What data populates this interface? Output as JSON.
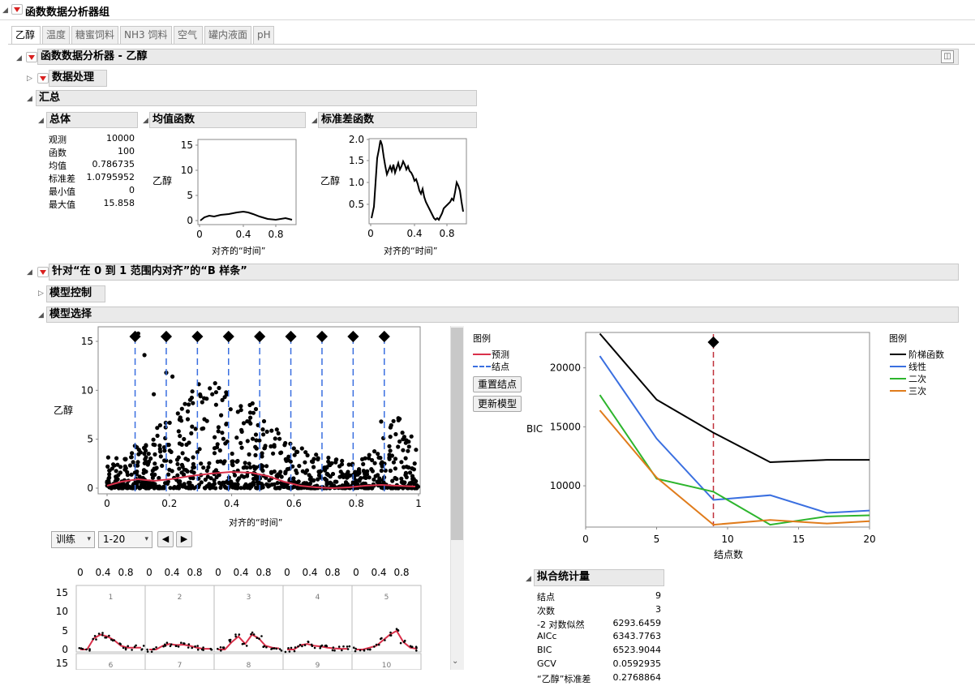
{
  "top": {
    "title": "函数数据分析器组"
  },
  "tabs": [
    "乙醇",
    "温度",
    "糖蜜饲料",
    "NH3 饲料",
    "空气",
    "罐内液面",
    "pH"
  ],
  "analyzer": {
    "title": "函数数据分析器 - 乙醇"
  },
  "data_processing": {
    "title": "数据处理"
  },
  "summary": {
    "title": "汇总",
    "overall": {
      "title": "总体",
      "rows": [
        {
          "label": "观测",
          "value": "10000"
        },
        {
          "label": "函数",
          "value": "100"
        },
        {
          "label": "均值",
          "value": "0.786735"
        },
        {
          "label": "标准差",
          "value": "1.0795952"
        },
        {
          "label": "最小值",
          "value": "0"
        },
        {
          "label": "最大值",
          "value": "15.858"
        }
      ]
    },
    "mean_fn": {
      "title": "均值函数",
      "ylabel": "乙醇",
      "xlabel": "对齐的“时间”",
      "yticks": [
        "15",
        "10",
        "5",
        "0"
      ],
      "xticks": [
        "0",
        "0.4",
        "0.8"
      ]
    },
    "sd_fn": {
      "title": "标准差函数",
      "ylabel": "乙醇",
      "xlabel": "对齐的“时间”",
      "yticks": [
        "2.0",
        "1.5",
        "1.0",
        "0.5"
      ],
      "xticks": [
        "0",
        "0.4",
        "0.8"
      ]
    }
  },
  "bspline": {
    "title": "针对“在 0 到 1 范围内对齐”的“B 样条”"
  },
  "model_control": {
    "title": "模型控制"
  },
  "model_selection": {
    "title": "模型选择"
  },
  "main_plot": {
    "ylabel": "乙醇",
    "xlabel": "对齐的“时间”",
    "yticks": [
      "15",
      "10",
      "5",
      "0"
    ],
    "xticks": [
      "0",
      "0.2",
      "0.4",
      "0.6",
      "0.8",
      "1"
    ],
    "knots": [
      0.09,
      0.19,
      0.29,
      0.39,
      0.49,
      0.59,
      0.69,
      0.79,
      0.89
    ]
  },
  "legend": {
    "title": "图例",
    "predicted": "预测",
    "knots": "结点"
  },
  "buttons": {
    "reset_knots": "重置结点",
    "update_model": "更新模型"
  },
  "controls": {
    "set": "训练",
    "range": "1-20"
  },
  "small_multiples": {
    "top_ticks": [
      "0",
      "0.4",
      "0.8"
    ],
    "yticks": [
      "15",
      "10",
      "5",
      "0"
    ],
    "row2_ytick": "15",
    "panels_row1": [
      "1",
      "2",
      "3",
      "4",
      "5"
    ],
    "panels_row2": [
      "6",
      "7",
      "8",
      "9",
      "10"
    ]
  },
  "chart_data": {
    "type": "line",
    "title": "",
    "xlabel": "结点数",
    "ylabel": "BIC",
    "x": [
      1,
      5,
      9,
      13,
      17,
      20
    ],
    "xlim": [
      0,
      20
    ],
    "ylim": [
      6500,
      23000
    ],
    "xticks": [
      "0",
      "5",
      "10",
      "15",
      "20"
    ],
    "yticks": [
      "20000",
      "15000",
      "10000"
    ],
    "selected_x": 9,
    "series": [
      {
        "name": "阶梯函数",
        "color": "#000000",
        "values": [
          22900,
          17300,
          14500,
          12000,
          12200,
          12200
        ]
      },
      {
        "name": "线性",
        "color": "#3a6fe0",
        "values": [
          21000,
          14000,
          8800,
          9200,
          7700,
          7900
        ]
      },
      {
        "name": "二次",
        "color": "#2db52d",
        "values": [
          17700,
          10600,
          9500,
          6700,
          7400,
          7500
        ]
      },
      {
        "name": "三次",
        "color": "#e07c1c",
        "values": [
          16400,
          10700,
          6700,
          7100,
          6800,
          7000
        ]
      }
    ],
    "legend_title": "图例"
  },
  "fit_stats": {
    "title": "拟合统计量",
    "rows": [
      {
        "label": "结点",
        "value": "9"
      },
      {
        "label": "次数",
        "value": "3"
      },
      {
        "label": "-2 对数似然",
        "value": "6293.6459"
      },
      {
        "label": "AICc",
        "value": "6343.7763"
      },
      {
        "label": "BIC",
        "value": "6523.9044"
      },
      {
        "label": "GCV",
        "value": "0.0592935"
      },
      {
        "label": "“乙醇”标准差",
        "value": "0.2768864"
      }
    ]
  }
}
